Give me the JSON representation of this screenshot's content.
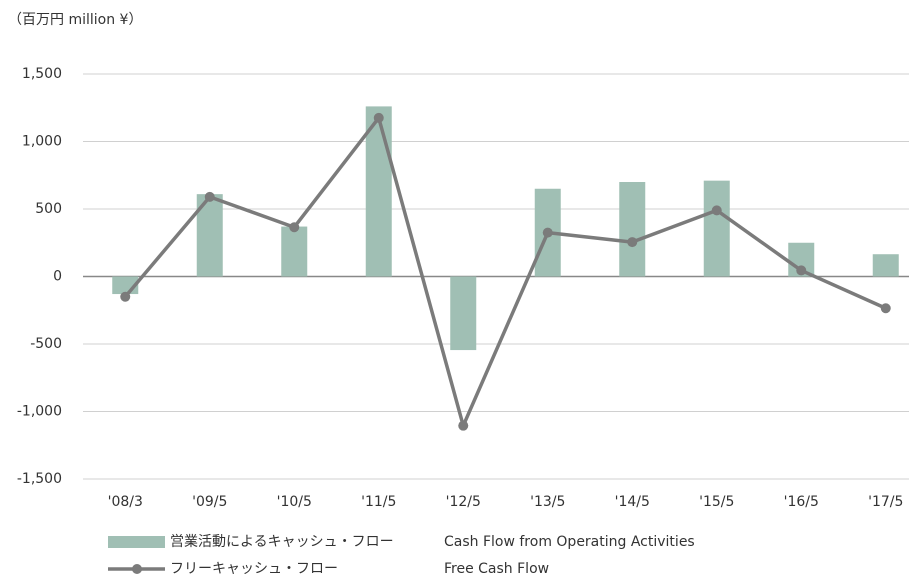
{
  "chart_data": {
    "type": "bar_line",
    "y_label": "（百万円  million ¥）",
    "categories": [
      "'08/3",
      "'09/5",
      "'10/5",
      "'11/5",
      "'12/5",
      "'13/5",
      "'14/5",
      "'15/5",
      "'16/5",
      "'17/5"
    ],
    "series": [
      {
        "name": "営業活動によるキャッシュ・フロー",
        "name_en": "Cash Flow from Operating Activities",
        "type": "bar",
        "color": "#a0bfb4",
        "values": [
          -130,
          610,
          370,
          1260,
          -545,
          650,
          700,
          710,
          250,
          165
        ]
      },
      {
        "name": "フリーキャッシュ・フロー",
        "name_en": "Free Cash Flow",
        "type": "line",
        "color": "#7b7b7b",
        "values": [
          -150,
          590,
          365,
          1175,
          -1105,
          325,
          255,
          490,
          45,
          -235
        ]
      }
    ],
    "ylim": [
      -1500,
      1500
    ],
    "yticks": [
      {
        "value": 1500,
        "label": "1,500"
      },
      {
        "value": 1000,
        "label": "1,000"
      },
      500,
      0,
      -500,
      {
        "value": -1000,
        "label": "-1,000"
      },
      {
        "value": -1500,
        "label": "-1,500"
      }
    ],
    "grid": true
  }
}
